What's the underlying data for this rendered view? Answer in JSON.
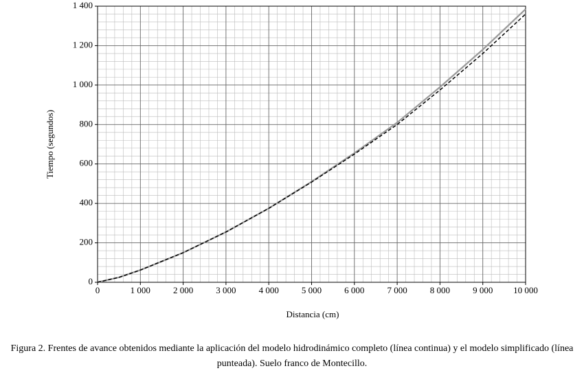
{
  "chart_data": {
    "type": "line",
    "x_label": "Distancia (cm)",
    "y_label": "Tiempo (segundos)",
    "x": [
      0,
      500,
      1000,
      2000,
      3000,
      4000,
      5000,
      6000,
      7000,
      8000,
      9000,
      10000
    ],
    "series": [
      {
        "color": "#999999",
        "line_style": "solid",
        "values": [
          0,
          25,
          62,
          150,
          255,
          375,
          510,
          655,
          810,
          990,
          1180,
          1385
        ]
      },
      {
        "color": "#000000",
        "line_style": "dashed",
        "values": [
          0,
          25,
          62,
          150,
          255,
          375,
          508,
          650,
          800,
          975,
          1160,
          1360
        ]
      }
    ],
    "xlim": [
      0,
      10000
    ],
    "xticks": [
      0,
      {
        "value": 1000,
        "label": "1 000"
      },
      {
        "value": 2000,
        "label": "2 000"
      },
      {
        "value": 3000,
        "label": "3 000"
      },
      {
        "value": 4000,
        "label": "4 000"
      },
      {
        "value": 5000,
        "label": "5 000"
      },
      {
        "value": 6000,
        "label": "6 000"
      },
      {
        "value": 7000,
        "label": "7 000"
      },
      {
        "value": 8000,
        "label": "8 000"
      },
      {
        "value": 9000,
        "label": "9 000"
      },
      {
        "value": 10000,
        "label": "10 000"
      }
    ],
    "ylim": [
      0,
      1400
    ],
    "yticks": [
      0,
      200,
      400,
      600,
      800,
      {
        "value": 1000,
        "label": "1 000"
      },
      {
        "value": 1200,
        "label": "1 200"
      },
      {
        "value": 1400,
        "label": "1 400"
      }
    ],
    "grid": true,
    "caption": "Figura 2. Frentes de avance obtenidos mediante la aplicación del modelo hidrodinámico completo (línea continua) y el modelo simplificado (línea punteada). Suelo franco de Montecillo."
  }
}
